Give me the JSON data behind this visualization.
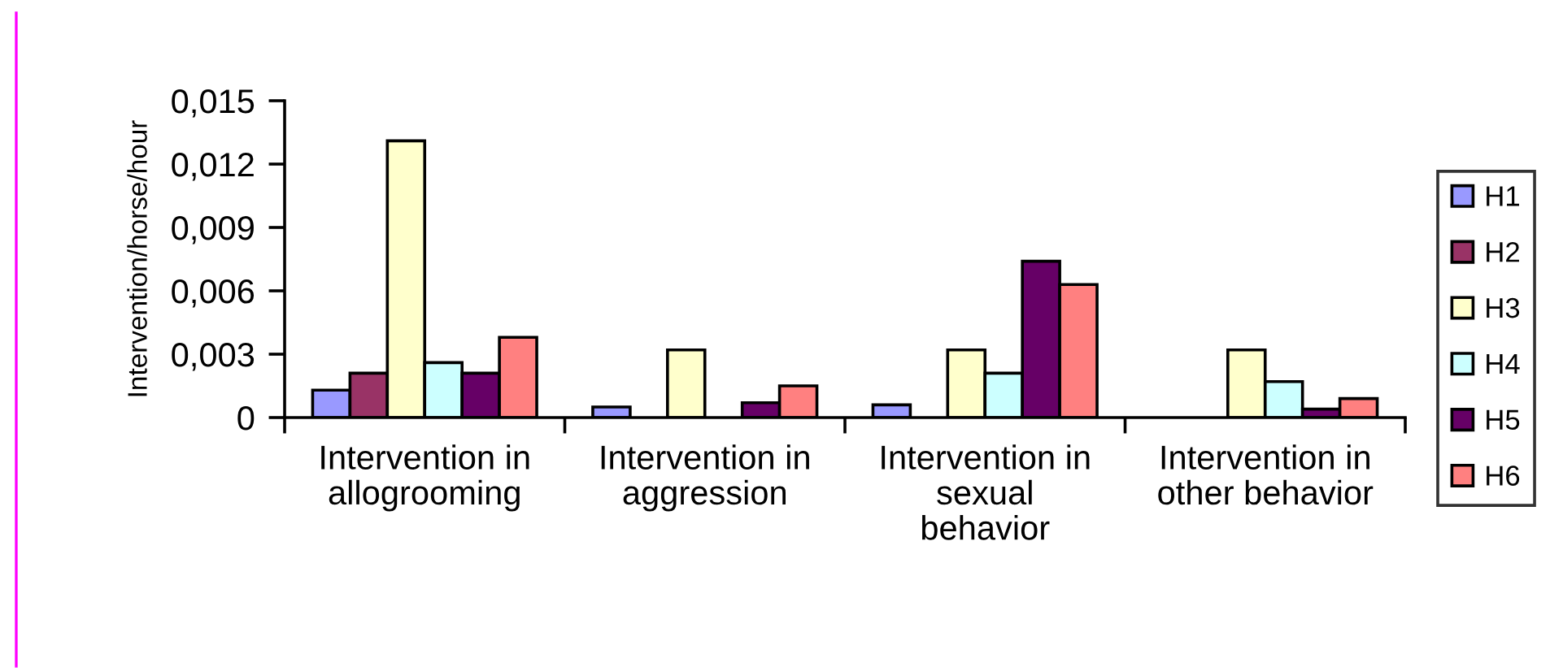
{
  "chart_data": {
    "type": "bar",
    "ylabel": "Intervention/horse/hour",
    "categories": [
      "Intervention in\nallogrooming",
      "Intervention in\naggression",
      "Intervention in\nsexual\nbehavior",
      "Intervention in\nother behavior"
    ],
    "series": [
      {
        "name": "H1",
        "color": "#9999ff",
        "values": [
          0.0013,
          0.0005,
          0.0006,
          null
        ]
      },
      {
        "name": "H2",
        "color": "#993366",
        "values": [
          0.0021,
          null,
          null,
          null
        ]
      },
      {
        "name": "H3",
        "color": "#ffffcc",
        "values": [
          0.0131,
          0.0032,
          0.0032,
          0.0032
        ]
      },
      {
        "name": "H4",
        "color": "#ccffff",
        "values": [
          0.0026,
          null,
          0.0021,
          0.0017
        ]
      },
      {
        "name": "H5",
        "color": "#660066",
        "values": [
          0.0021,
          0.0007,
          0.0074,
          0.0004
        ]
      },
      {
        "name": "H6",
        "color": "#ff8080",
        "values": [
          0.0038,
          0.0015,
          0.0063,
          0.0009
        ]
      }
    ],
    "ylim": [
      0,
      0.015
    ],
    "yticks": [
      0,
      {
        "value": 0.003,
        "label": "0,003"
      },
      {
        "value": 0.006,
        "label": "0,006"
      },
      {
        "value": 0.009,
        "label": "0,009"
      },
      {
        "value": 0.012,
        "label": "0,012"
      },
      {
        "value": 0.015,
        "label": "0,015"
      }
    ],
    "grid": false,
    "legend": "right"
  }
}
